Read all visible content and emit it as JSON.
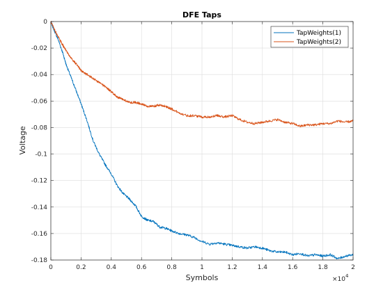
{
  "chart_data": {
    "type": "line",
    "title": "DFE Taps",
    "xlabel": "Symbols",
    "ylabel": "Voltage",
    "x_multiplier_label": "×10",
    "x_multiplier_exponent": "4",
    "xlim": [
      0,
      2
    ],
    "ylim": [
      -0.18,
      0
    ],
    "xticks": [
      0,
      0.2,
      0.4,
      0.6,
      0.8,
      1,
      1.2,
      1.4,
      1.6,
      1.8,
      2
    ],
    "xtick_labels": [
      "0",
      "0.2",
      "0.4",
      "0.6",
      "0.8",
      "1",
      "1.2",
      "1.4",
      "1.6",
      "1.8",
      "2"
    ],
    "yticks": [
      0,
      -0.02,
      -0.04,
      -0.06,
      -0.08,
      -0.1,
      -0.12,
      -0.14,
      -0.16,
      -0.18
    ],
    "ytick_labels": [
      "0",
      "-0.02",
      "-0.04",
      "-0.06",
      "-0.08",
      "-0.1",
      "-0.12",
      "-0.14",
      "-0.16",
      "-0.18"
    ],
    "grid": true,
    "legend_position": "top-right",
    "series": [
      {
        "name": "TapWeights(1)",
        "color": "#0072BD",
        "x": [
          0,
          0.02,
          0.05,
          0.08,
          0.1,
          0.13,
          0.16,
          0.2,
          0.24,
          0.28,
          0.32,
          0.36,
          0.4,
          0.44,
          0.48,
          0.52,
          0.56,
          0.6,
          0.64,
          0.68,
          0.72,
          0.76,
          0.8,
          0.85,
          0.9,
          0.95,
          1.0,
          1.05,
          1.1,
          1.15,
          1.2,
          1.25,
          1.3,
          1.35,
          1.4,
          1.45,
          1.5,
          1.55,
          1.6,
          1.65,
          1.7,
          1.75,
          1.8,
          1.85,
          1.9,
          1.95,
          2.0
        ],
        "y": [
          0,
          -0.006,
          -0.014,
          -0.024,
          -0.032,
          -0.041,
          -0.05,
          -0.062,
          -0.075,
          -0.09,
          -0.1,
          -0.108,
          -0.115,
          -0.124,
          -0.13,
          -0.134,
          -0.139,
          -0.147,
          -0.15,
          -0.151,
          -0.155,
          -0.156,
          -0.158,
          -0.16,
          -0.161,
          -0.163,
          -0.166,
          -0.168,
          -0.167,
          -0.168,
          -0.169,
          -0.17,
          -0.171,
          -0.17,
          -0.171,
          -0.173,
          -0.174,
          -0.174,
          -0.176,
          -0.175,
          -0.177,
          -0.176,
          -0.177,
          -0.176,
          -0.179,
          -0.177,
          -0.176
        ]
      },
      {
        "name": "TapWeights(2)",
        "color": "#D95319",
        "x": [
          0,
          0.02,
          0.05,
          0.08,
          0.1,
          0.13,
          0.16,
          0.2,
          0.24,
          0.28,
          0.32,
          0.36,
          0.4,
          0.44,
          0.48,
          0.52,
          0.56,
          0.6,
          0.64,
          0.68,
          0.72,
          0.76,
          0.8,
          0.85,
          0.9,
          0.95,
          1.0,
          1.05,
          1.1,
          1.15,
          1.2,
          1.25,
          1.3,
          1.35,
          1.4,
          1.45,
          1.5,
          1.55,
          1.6,
          1.65,
          1.7,
          1.75,
          1.8,
          1.85,
          1.9,
          1.95,
          2.0
        ],
        "y": [
          0,
          -0.005,
          -0.012,
          -0.018,
          -0.022,
          -0.027,
          -0.031,
          -0.037,
          -0.04,
          -0.043,
          -0.046,
          -0.049,
          -0.053,
          -0.057,
          -0.059,
          -0.061,
          -0.061,
          -0.062,
          -0.064,
          -0.064,
          -0.063,
          -0.064,
          -0.066,
          -0.069,
          -0.071,
          -0.071,
          -0.072,
          -0.072,
          -0.071,
          -0.072,
          -0.071,
          -0.074,
          -0.076,
          -0.077,
          -0.076,
          -0.075,
          -0.074,
          -0.076,
          -0.077,
          -0.079,
          -0.078,
          -0.078,
          -0.077,
          -0.077,
          -0.075,
          -0.076,
          -0.075
        ]
      }
    ]
  }
}
